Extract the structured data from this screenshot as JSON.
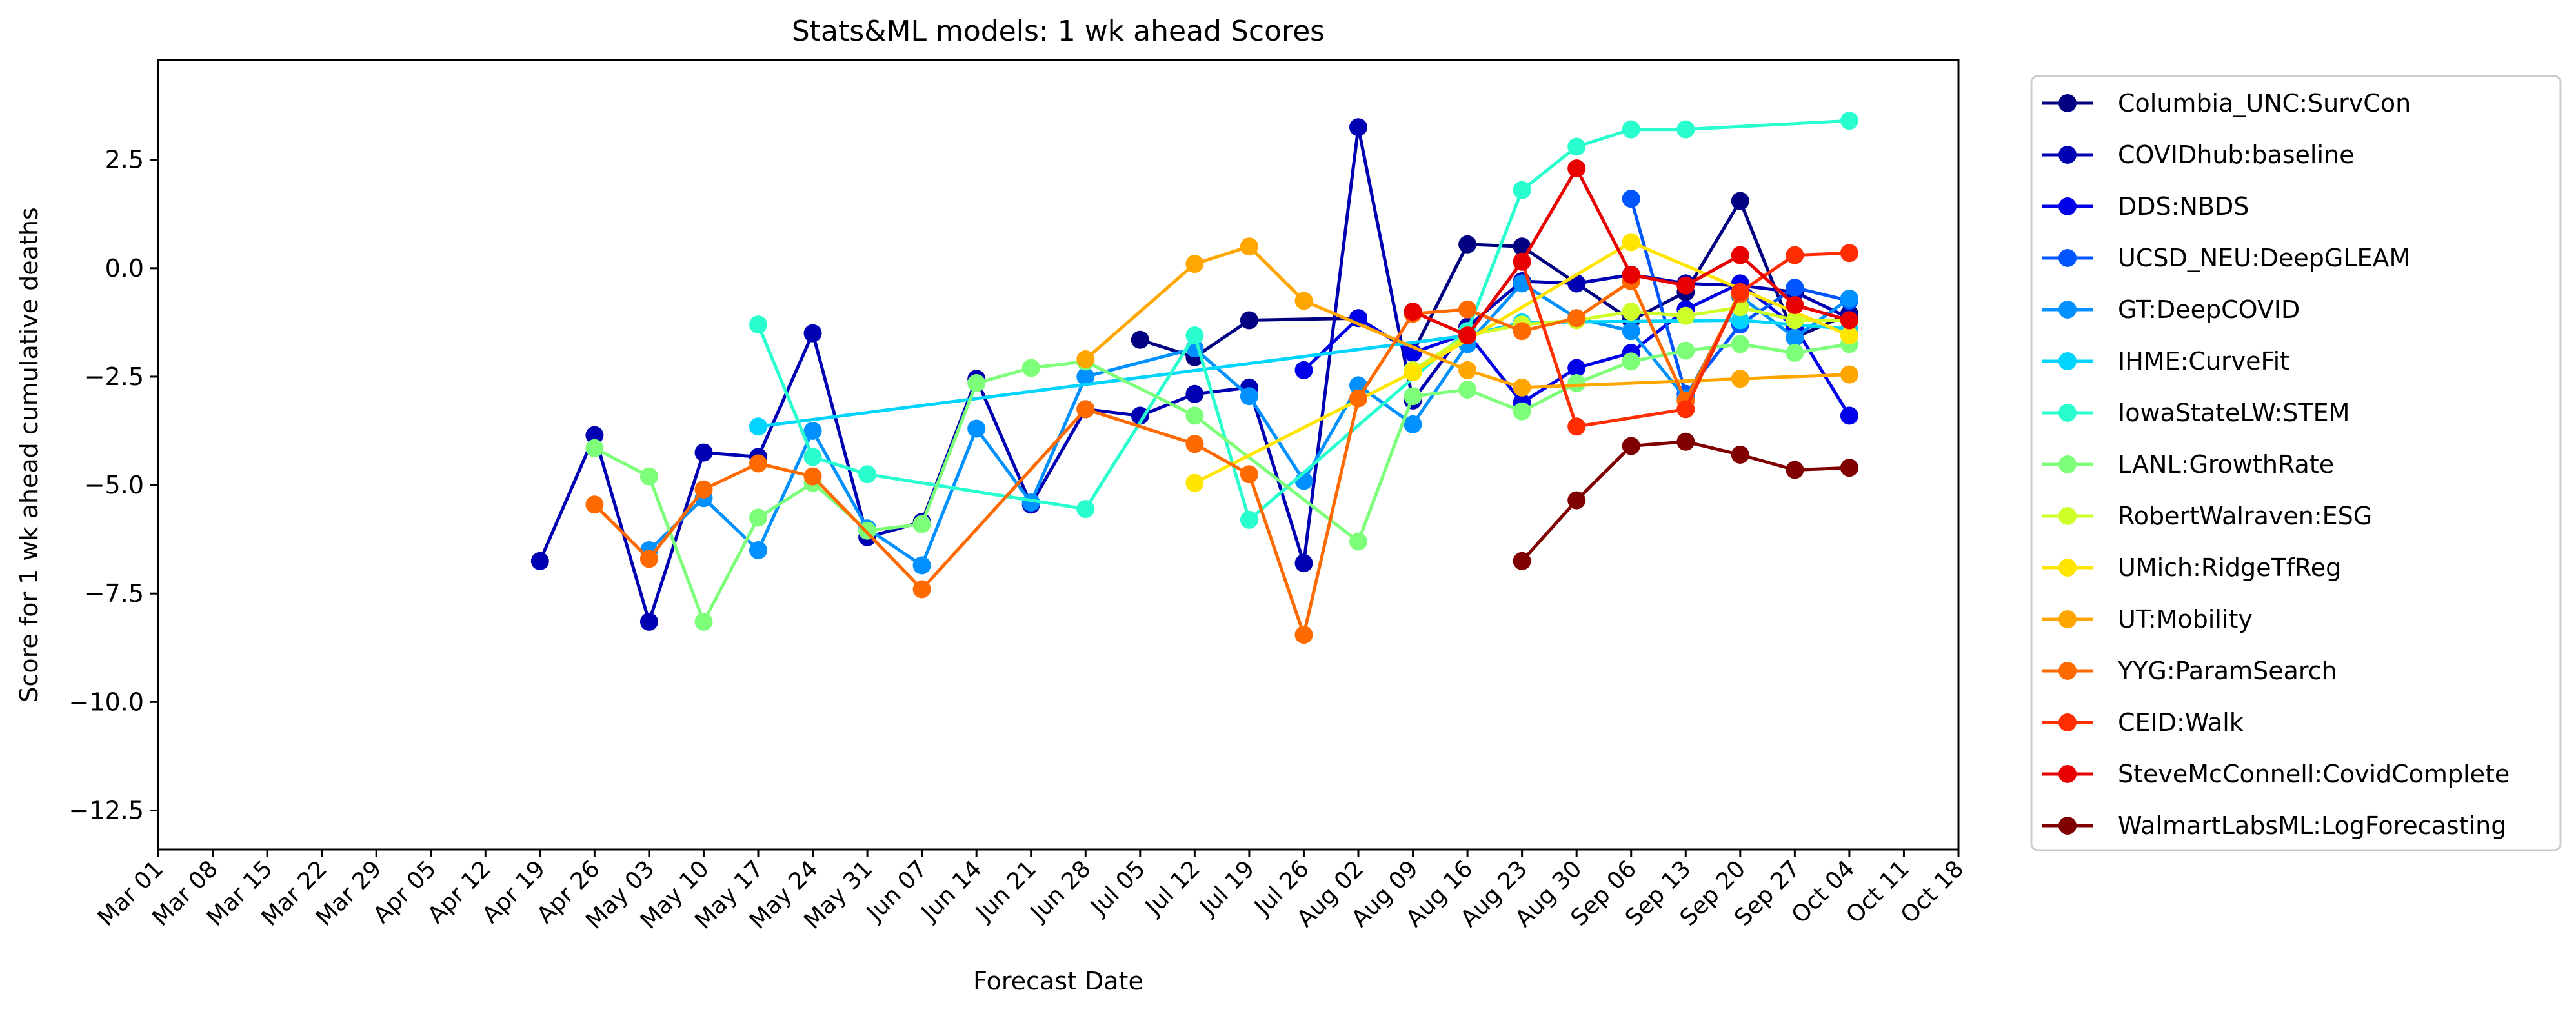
{
  "chart_data": {
    "type": "line",
    "title": "Stats&ML models: 1 wk ahead Scores",
    "xlabel": "Forecast Date",
    "ylabel": "Score for 1 wk ahead cumulative deaths",
    "xlim": [
      "2020-03-01",
      "2020-10-18"
    ],
    "ylim": [
      -13.4,
      4.8
    ],
    "x_tick_labels": [
      "Mar 01",
      "Mar 08",
      "Mar 15",
      "Mar 22",
      "Mar 29",
      "Apr 05",
      "Apr 12",
      "Apr 19",
      "Apr 26",
      "May 03",
      "May 10",
      "May 17",
      "May 24",
      "May 31",
      "Jun 07",
      "Jun 14",
      "Jun 21",
      "Jun 28",
      "Jul 05",
      "Jul 12",
      "Jul 19",
      "Jul 26",
      "Aug 02",
      "Aug 09",
      "Aug 16",
      "Aug 23",
      "Aug 30",
      "Sep 06",
      "Sep 13",
      "Sep 20",
      "Sep 27",
      "Oct 04",
      "Oct 11",
      "Oct 18"
    ],
    "y_ticks": [
      2.5,
      0.0,
      -2.5,
      -5.0,
      -7.5,
      -10.0,
      -12.5
    ],
    "y_tick_labels": [
      "2.5",
      "0.0",
      "−2.5",
      "−5.0",
      "−7.5",
      "−10.0",
      "−12.5"
    ],
    "grid": false,
    "legend_position": "outside-right",
    "series": [
      {
        "name": "Columbia_UNC:SurvCon",
        "color": "#000080",
        "x": [
          "2020-07-05",
          "2020-07-12",
          "2020-07-19",
          "2020-08-02",
          "2020-08-09",
          "2020-08-16",
          "2020-08-23",
          "2020-08-30",
          "2020-09-06",
          "2020-09-13",
          "2020-09-20",
          "2020-09-27",
          "2020-10-04"
        ],
        "y": [
          -1.65,
          -2.05,
          -1.2,
          -1.15,
          -1.95,
          0.55,
          0.5,
          -0.35,
          -1.2,
          -0.55,
          1.55,
          -1.6,
          -1.05
        ]
      },
      {
        "name": "COVIDhub:baseline",
        "color": "#0000B3",
        "x": [
          "2020-04-19",
          "2020-04-26",
          "2020-05-03",
          "2020-05-10",
          "2020-05-17",
          "2020-05-24",
          "2020-05-31",
          "2020-06-07",
          "2020-06-14",
          "2020-06-21",
          "2020-06-28",
          "2020-07-05",
          "2020-07-12",
          "2020-07-19",
          "2020-07-26",
          "2020-08-02",
          "2020-08-09",
          "2020-08-16",
          "2020-08-23",
          "2020-08-30",
          "2020-09-06",
          "2020-09-13",
          "2020-09-20",
          "2020-09-27",
          "2020-10-04"
        ],
        "y": [
          -6.75,
          -3.85,
          -8.15,
          -4.25,
          -4.35,
          -1.5,
          -6.2,
          -5.85,
          -2.55,
          -5.45,
          -3.25,
          -3.4,
          -2.9,
          -2.75,
          -6.8,
          3.25,
          -3.05,
          -1.35,
          -0.3,
          -0.35,
          -0.15,
          -0.35,
          -0.4,
          -0.55,
          -1.15
        ]
      },
      {
        "name": "DDS:NBDS",
        "color": "#0000E8",
        "x": [
          "2020-07-26",
          "2020-08-02",
          "2020-08-09",
          "2020-08-16",
          "2020-08-23",
          "2020-08-30",
          "2020-09-06",
          "2020-09-13",
          "2020-09-20",
          "2020-09-27",
          "2020-10-04"
        ],
        "y": [
          -2.35,
          -1.15,
          -1.95,
          -1.5,
          -3.1,
          -2.3,
          -1.95,
          -0.95,
          -0.35,
          -1.35,
          -3.4
        ]
      },
      {
        "name": "UCSD_NEU:DeepGLEAM",
        "color": "#0055FF",
        "x": [
          "2020-09-06",
          "2020-09-13",
          "2020-09-20",
          "2020-09-27",
          "2020-10-04"
        ],
        "y": [
          1.6,
          -2.9,
          -1.3,
          -0.45,
          -0.75
        ]
      },
      {
        "name": "GT:DeepCOVID",
        "color": "#0090FF",
        "x": [
          "2020-05-03",
          "2020-05-10",
          "2020-05-17",
          "2020-05-24",
          "2020-05-31",
          "2020-06-07",
          "2020-06-14",
          "2020-06-21",
          "2020-06-28",
          "2020-07-12",
          "2020-07-19",
          "2020-07-26",
          "2020-08-02",
          "2020-08-09",
          "2020-08-16",
          "2020-08-23",
          "2020-08-30",
          "2020-09-06",
          "2020-09-13",
          "2020-09-20",
          "2020-09-27",
          "2020-10-04"
        ],
        "y": [
          -6.5,
          -5.3,
          -6.5,
          -3.75,
          -6.0,
          -6.85,
          -3.7,
          -5.4,
          -2.5,
          -1.85,
          -2.95,
          -4.9,
          -2.7,
          -3.6,
          -1.75,
          -0.35,
          -1.15,
          -1.45,
          -3.0,
          -0.65,
          -1.6,
          -0.7
        ]
      },
      {
        "name": "IHME:CurveFit",
        "color": "#00D4FF",
        "x": [
          "2020-05-17",
          "2020-08-16",
          "2020-08-23",
          "2020-09-20",
          "2020-10-04"
        ],
        "y": [
          -3.65,
          -1.55,
          -1.25,
          -1.2,
          -1.4
        ]
      },
      {
        "name": "IowaStateLW:STEM",
        "color": "#29FFCE",
        "x": [
          "2020-05-17",
          "2020-05-24",
          "2020-05-31",
          "2020-06-28",
          "2020-07-12",
          "2020-07-19",
          "2020-08-16",
          "2020-08-23",
          "2020-08-30",
          "2020-09-06",
          "2020-09-13",
          "2020-10-04"
        ],
        "y": [
          -1.3,
          -4.35,
          -4.75,
          -5.55,
          -1.55,
          -5.8,
          -1.45,
          1.8,
          2.8,
          3.2,
          3.2,
          3.4
        ]
      },
      {
        "name": "LANL:GrowthRate",
        "color": "#7DFF7A",
        "x": [
          "2020-04-26",
          "2020-05-03",
          "2020-05-10",
          "2020-05-17",
          "2020-05-24",
          "2020-05-31",
          "2020-06-07",
          "2020-06-14",
          "2020-06-21",
          "2020-06-28",
          "2020-07-12",
          "2020-08-02",
          "2020-08-09",
          "2020-08-16",
          "2020-08-23",
          "2020-08-30",
          "2020-09-06",
          "2020-09-13",
          "2020-09-20",
          "2020-09-27",
          "2020-10-04"
        ],
        "y": [
          -4.15,
          -4.8,
          -8.15,
          -5.75,
          -4.95,
          -6.05,
          -5.9,
          -2.65,
          -2.3,
          -2.15,
          -3.4,
          -6.3,
          -2.95,
          -2.8,
          -3.3,
          -2.65,
          -2.15,
          -1.9,
          -1.75,
          -1.95,
          -1.75
        ]
      },
      {
        "name": "RobertWalraven:ESG",
        "color": "#CEFF29",
        "x": [
          "2020-08-09",
          "2020-08-16",
          "2020-08-23",
          "2020-08-30",
          "2020-09-06",
          "2020-09-13",
          "2020-09-20",
          "2020-09-27",
          "2020-10-04"
        ],
        "y": [
          -2.35,
          -1.55,
          -1.3,
          -1.2,
          -1.0,
          -1.1,
          -0.9,
          -1.2,
          -1.2
        ]
      },
      {
        "name": "UMich:RidgeTfReg",
        "color": "#FFE500",
        "x": [
          "2020-07-12",
          "2020-08-09",
          "2020-09-06",
          "2020-10-04"
        ],
        "y": [
          -4.95,
          -2.4,
          0.6,
          -1.55
        ]
      },
      {
        "name": "UT:Mobility",
        "color": "#FFA600",
        "x": [
          "2020-06-28",
          "2020-07-12",
          "2020-07-19",
          "2020-07-26",
          "2020-08-16",
          "2020-08-23",
          "2020-09-20",
          "2020-10-04"
        ],
        "y": [
          -2.1,
          0.1,
          0.5,
          -0.75,
          -2.35,
          -2.75,
          -2.55,
          -2.45
        ]
      },
      {
        "name": "YYG:ParamSearch",
        "color": "#FF6A00",
        "x": [
          "2020-04-26",
          "2020-05-03",
          "2020-05-10",
          "2020-05-17",
          "2020-05-24",
          "2020-06-07",
          "2020-06-28",
          "2020-07-12",
          "2020-07-19",
          "2020-07-26",
          "2020-08-02",
          "2020-08-09",
          "2020-08-16",
          "2020-08-23",
          "2020-08-30",
          "2020-09-06",
          "2020-09-13",
          "2020-09-20"
        ],
        "y": [
          -5.45,
          -6.7,
          -5.1,
          -4.5,
          -4.8,
          -7.4,
          -3.25,
          -4.05,
          -4.75,
          -8.45,
          -3.0,
          -1.05,
          -0.95,
          -1.45,
          -1.15,
          -0.3,
          -3.05,
          -0.6
        ]
      },
      {
        "name": "CEID:Walk",
        "color": "#FF2D00",
        "x": [
          "2020-08-23",
          "2020-08-30",
          "2020-09-13",
          "2020-09-20",
          "2020-09-27",
          "2020-10-04"
        ],
        "y": [
          0.15,
          -3.65,
          -3.25,
          -0.55,
          0.3,
          0.35
        ]
      },
      {
        "name": "SteveMcConnell:CovidComplete",
        "color": "#E80000",
        "x": [
          "2020-08-09",
          "2020-08-16",
          "2020-08-23",
          "2020-08-30",
          "2020-09-06",
          "2020-09-13",
          "2020-09-20",
          "2020-09-27",
          "2020-10-04"
        ],
        "y": [
          -1.0,
          -1.55,
          0.15,
          2.3,
          -0.15,
          -0.4,
          0.3,
          -0.85,
          -1.2
        ]
      },
      {
        "name": "WalmartLabsML:LogForecasting",
        "color": "#800000",
        "x": [
          "2020-08-23",
          "2020-08-30",
          "2020-09-06",
          "2020-09-13",
          "2020-09-20",
          "2020-09-27",
          "2020-10-04"
        ],
        "y": [
          -6.75,
          -5.35,
          -4.1,
          -4.0,
          -4.3,
          -4.65,
          -4.6
        ]
      }
    ]
  }
}
